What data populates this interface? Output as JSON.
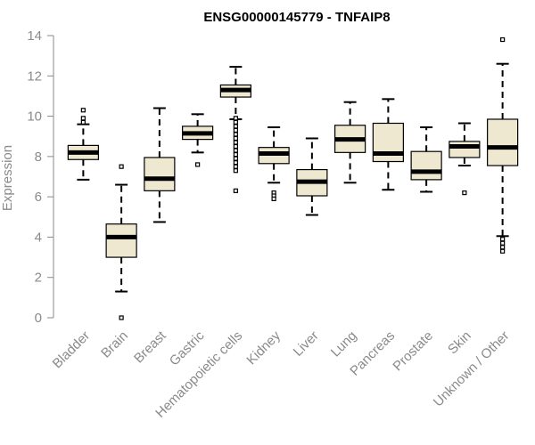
{
  "chart_data": {
    "type": "box",
    "title": "ENSG00000145779 - TNFAIP8",
    "xlabel": "",
    "ylabel": "Expression",
    "ylim": [
      0,
      14
    ],
    "yticks": [
      0,
      2,
      4,
      6,
      8,
      10,
      12,
      14
    ],
    "grid": false,
    "box_fill": "#efe8d0",
    "categories": [
      "Bladder",
      "Brain",
      "Breast",
      "Gastric",
      "Hematopoietic cells",
      "Kidney",
      "Liver",
      "Lung",
      "Pancreas",
      "Prostate",
      "Skin",
      "Unknown / Other"
    ],
    "boxes": [
      {
        "whisker_low": 6.85,
        "q1": 7.85,
        "median": 8.2,
        "q3": 8.55,
        "whisker_high": 9.6,
        "outliers": [
          9.7,
          9.9,
          10.3
        ]
      },
      {
        "whisker_low": 1.3,
        "q1": 3.0,
        "median": 4.0,
        "q3": 4.65,
        "whisker_high": 6.6,
        "outliers": [
          7.5,
          0.0
        ]
      },
      {
        "whisker_low": 4.75,
        "q1": 6.3,
        "median": 6.9,
        "q3": 7.95,
        "whisker_high": 10.4,
        "outliers": []
      },
      {
        "whisker_low": 8.2,
        "q1": 8.85,
        "median": 9.15,
        "q3": 9.5,
        "whisker_high": 10.1,
        "outliers": [
          7.6
        ]
      },
      {
        "whisker_low": 9.85,
        "q1": 10.95,
        "median": 11.3,
        "q3": 11.55,
        "whisker_high": 12.45,
        "outliers": [
          9.9,
          9.7,
          9.5,
          9.3,
          9.1,
          8.9,
          8.7,
          8.5,
          8.3,
          8.1,
          7.9,
          7.7,
          7.5,
          7.3,
          6.3
        ]
      },
      {
        "whisker_low": 6.7,
        "q1": 7.65,
        "median": 8.15,
        "q3": 8.45,
        "whisker_high": 9.45,
        "outliers": [
          6.2,
          6.05,
          5.9
        ]
      },
      {
        "whisker_low": 5.1,
        "q1": 6.05,
        "median": 6.75,
        "q3": 7.35,
        "whisker_high": 8.9,
        "outliers": []
      },
      {
        "whisker_low": 6.7,
        "q1": 8.2,
        "median": 8.85,
        "q3": 9.55,
        "whisker_high": 10.7,
        "outliers": []
      },
      {
        "whisker_low": 6.35,
        "q1": 7.75,
        "median": 8.15,
        "q3": 9.65,
        "whisker_high": 10.85,
        "outliers": []
      },
      {
        "whisker_low": 6.25,
        "q1": 6.85,
        "median": 7.25,
        "q3": 8.25,
        "whisker_high": 9.45,
        "outliers": []
      },
      {
        "whisker_low": 7.55,
        "q1": 7.95,
        "median": 8.5,
        "q3": 8.75,
        "whisker_high": 9.65,
        "outliers": [
          6.2
        ]
      },
      {
        "whisker_low": 4.05,
        "q1": 7.55,
        "median": 8.45,
        "q3": 9.85,
        "whisker_high": 12.6,
        "outliers": [
          3.3,
          3.5,
          3.7,
          3.9,
          13.8
        ]
      }
    ]
  }
}
